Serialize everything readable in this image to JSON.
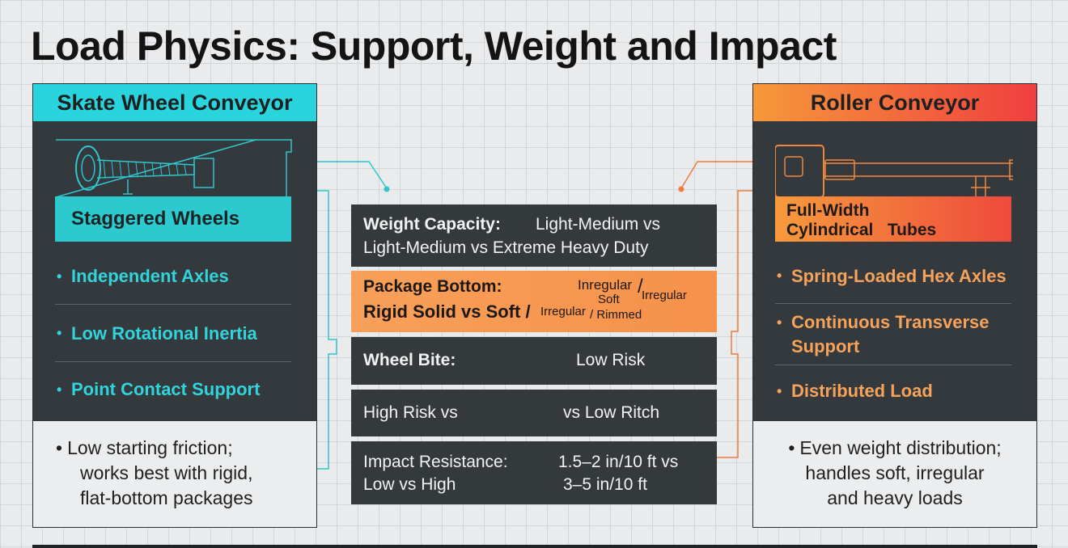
{
  "title": "Load Physics: Support, Weight and Impact",
  "left_panel": {
    "header": "Skate Wheel Conveyor",
    "label": "Staggered Wheels",
    "features": [
      "Independent Axles",
      "Low Rotational Inertia",
      "Point Contact Support"
    ],
    "summary_bullet": "•",
    "summary_lines": [
      "Low starting friction;",
      "works best with rigid,",
      "flat-bottom packages"
    ]
  },
  "right_panel": {
    "header": "Roller Conveyor",
    "label_line1": "Full-Width",
    "label_line2a": "Cylindrical",
    "label_line2b": "Tubes",
    "features": [
      "Spring-Loaded Hex Axles",
      "Continuous Transverse",
      "Support",
      "Distributed Load"
    ],
    "summary_bullet": "•",
    "summary_lines": [
      "Even weight distribution;",
      "handles soft, irregular",
      "and heavy loads"
    ]
  },
  "comparison": {
    "weight": {
      "label": "Weight Capacity:",
      "value1": "Light-Medium vs",
      "value2": "Light-Medium vs Extreme Heavy Duty"
    },
    "package": {
      "label": "Package Bottom:",
      "line2": "Rigid Solid vs Soft /",
      "t1": "Inregular",
      "t2": "/",
      "t3": "Soft",
      "t4": "Irregular",
      "t5": "Irregular",
      "t6": "/ Rimmed"
    },
    "bite": {
      "label": "Wheel Bite:",
      "value": "Low Risk"
    },
    "risk": {
      "left": "High Risk vs",
      "right": "vs Low Ritch"
    },
    "impact": {
      "label": "Impact Resistance:",
      "label2": "Low vs High",
      "value1": "1.5–2 in/10 ft vs",
      "value2": "3–5 in/10 ft"
    }
  },
  "colors": {
    "teal": "#2ad4dc",
    "orange": "#f7983a",
    "red": "#ef3f3f",
    "dark": "#33393c"
  }
}
